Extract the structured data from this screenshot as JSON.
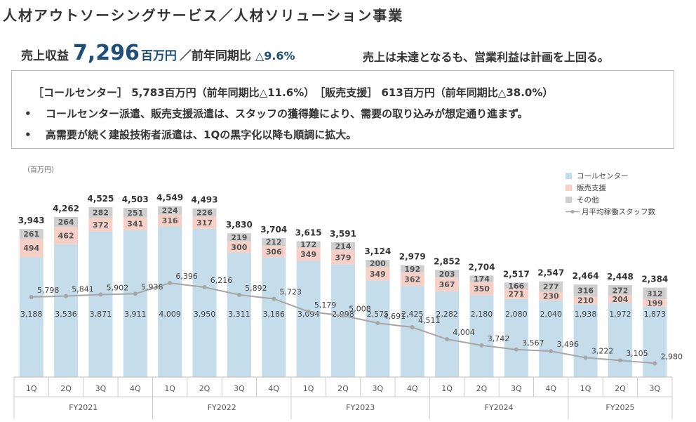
{
  "page": {
    "title": "人材アウトソーシングサービス／人材ソリューション事業",
    "headline": {
      "label": "売上収益",
      "value": "7,296",
      "unit": "百万円",
      "yoy_label": "／前年同期比",
      "yoy_value": "△9.6%"
    },
    "summary": "売上は未達となるも、営業利益は計画を上回る。",
    "box": {
      "line1": "［コールセンター］ 5,783百万円（前年同期比△11.6%）　［販売支援］ 613百万円（前年同期比△38.0%）",
      "bullets": [
        "コールセンター派遣、販売支援派遣は、スタッフの獲得難により、需要の取り込みが想定通り進まず。",
        "高需要が続く建設技術者派遣は、1Qの黒字化以降も順調に拡大。"
      ],
      "bullet_marker": "•"
    }
  },
  "chart_data": {
    "type": "bar",
    "stacked": true,
    "unit_label": "（百万円）",
    "categories": [
      "1Q",
      "2Q",
      "3Q",
      "4Q",
      "1Q",
      "2Q",
      "3Q",
      "4Q",
      "1Q",
      "2Q",
      "3Q",
      "4Q",
      "1Q",
      "2Q",
      "3Q",
      "4Q",
      "1Q",
      "2Q",
      "3Q"
    ],
    "groups": [
      {
        "label": "FY2021",
        "count": 4
      },
      {
        "label": "FY2022",
        "count": 4
      },
      {
        "label": "FY2023",
        "count": 4
      },
      {
        "label": "FY2024",
        "count": 4
      },
      {
        "label": "FY2025",
        "count": 3
      }
    ],
    "series": [
      {
        "name": "コールセンター",
        "color": "#c5dcea",
        "values": [
          3188,
          3536,
          3871,
          3911,
          4009,
          3950,
          3311,
          3186,
          3094,
          2998,
          2575,
          2425,
          2282,
          2180,
          2080,
          2040,
          1938,
          1972,
          1873
        ]
      },
      {
        "name": "販売支援",
        "color": "#f6cfc6",
        "values": [
          494,
          462,
          372,
          341,
          316,
          317,
          300,
          306,
          349,
          379,
          349,
          362,
          367,
          350,
          271,
          230,
          210,
          204,
          199
        ]
      },
      {
        "name": "その他",
        "color": "#cfcfcf",
        "values": [
          261,
          264,
          282,
          251,
          224,
          226,
          219,
          212,
          172,
          214,
          200,
          192,
          203,
          174,
          166,
          277,
          316,
          272,
          312
        ]
      }
    ],
    "totals": [
      3943,
      4262,
      4525,
      4503,
      4549,
      4493,
      3830,
      3704,
      3615,
      3591,
      3124,
      2979,
      2852,
      2704,
      2517,
      2547,
      2464,
      2448,
      2384
    ],
    "line_series": {
      "name": "月平均稼働スタッフ数",
      "color": "#a6a6a6",
      "values": [
        5798,
        5841,
        5902,
        5936,
        6396,
        6216,
        5892,
        5723,
        5179,
        5008,
        4691,
        4511,
        4004,
        3742,
        3567,
        3496,
        3222,
        3105,
        2980
      ]
    },
    "legend_position": "top-right",
    "grid": false
  }
}
